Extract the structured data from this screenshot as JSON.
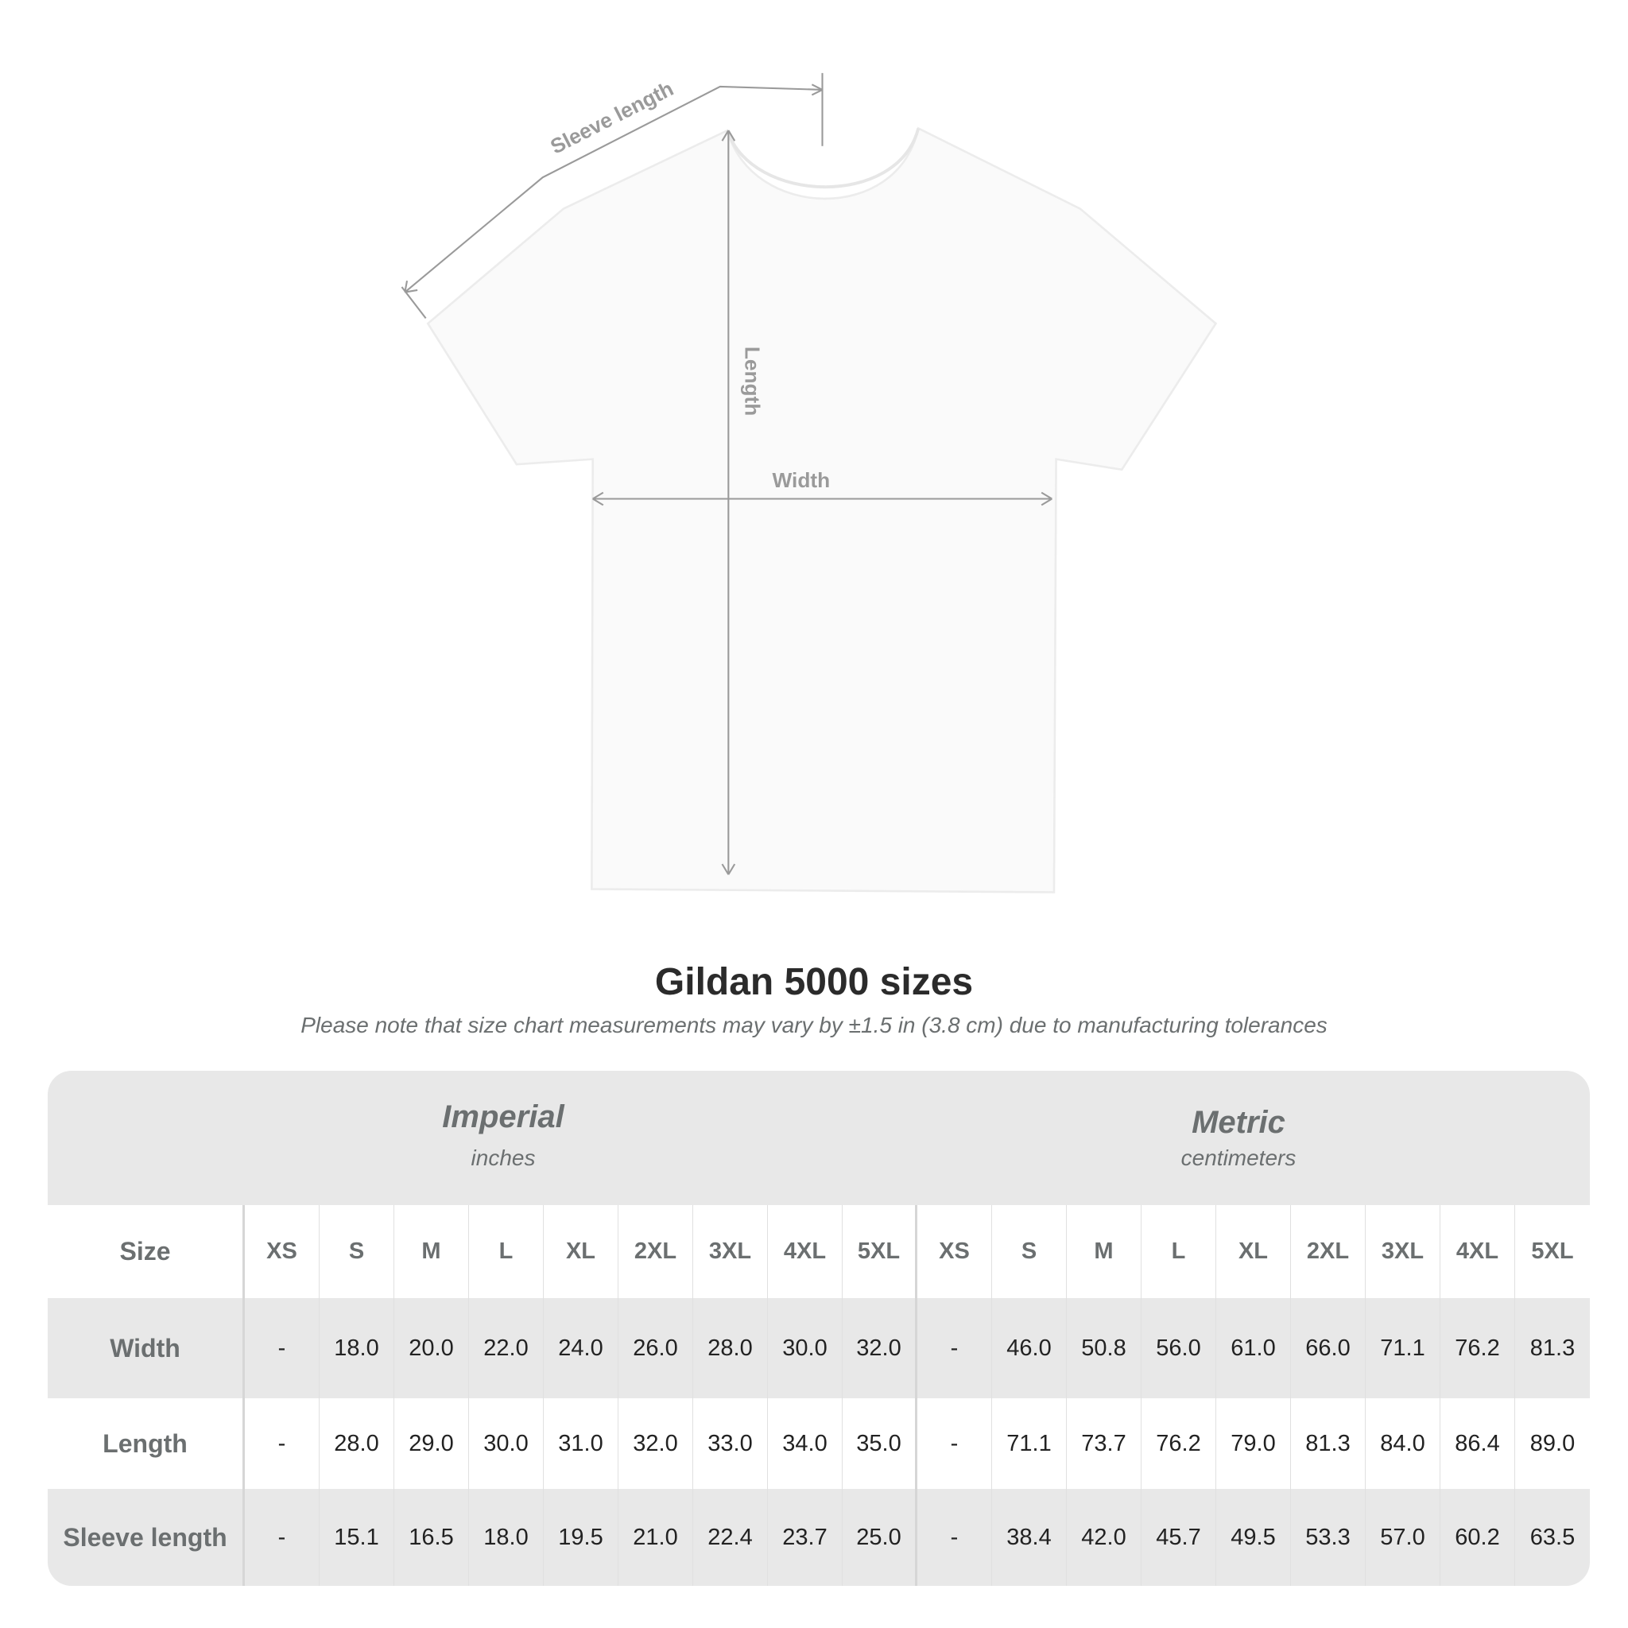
{
  "diagram": {
    "labels": {
      "sleeve_length": "Sleeve length",
      "length": "Length",
      "width": "Width"
    }
  },
  "header": {
    "title": "Gildan 5000 sizes",
    "note": "Please note that size chart measurements may vary by ±1.5 in (3.8 cm) due to manufacturing tolerances"
  },
  "table": {
    "imperial": {
      "title": "Imperial",
      "unit": "inches"
    },
    "metric": {
      "title": "Metric",
      "unit": "centimeters"
    },
    "size_label": "Size",
    "sizes": [
      "XS",
      "S",
      "M",
      "L",
      "XL",
      "2XL",
      "3XL",
      "4XL",
      "5XL"
    ],
    "rows": [
      {
        "label": "Width",
        "imperial": [
          "-",
          "18.0",
          "20.0",
          "22.0",
          "24.0",
          "26.0",
          "28.0",
          "30.0",
          "32.0"
        ],
        "metric": [
          "-",
          "46.0",
          "50.8",
          "56.0",
          "61.0",
          "66.0",
          "71.1",
          "76.2",
          "81.3"
        ]
      },
      {
        "label": "Length",
        "imperial": [
          "-",
          "28.0",
          "29.0",
          "30.0",
          "31.0",
          "32.0",
          "33.0",
          "34.0",
          "35.0"
        ],
        "metric": [
          "-",
          "71.1",
          "73.7",
          "76.2",
          "79.0",
          "81.3",
          "84.0",
          "86.4",
          "89.0"
        ]
      },
      {
        "label": "Sleeve length",
        "imperial": [
          "-",
          "15.1",
          "16.5",
          "18.0",
          "19.5",
          "21.0",
          "22.4",
          "23.7",
          "25.0"
        ],
        "metric": [
          "-",
          "38.4",
          "42.0",
          "45.7",
          "49.5",
          "53.3",
          "57.0",
          "60.2",
          "63.5"
        ]
      }
    ]
  },
  "colors": {
    "band_gray": "#e8e8e8",
    "label_gray": "#6b6f70",
    "measure_line": "#9a9a9a"
  }
}
